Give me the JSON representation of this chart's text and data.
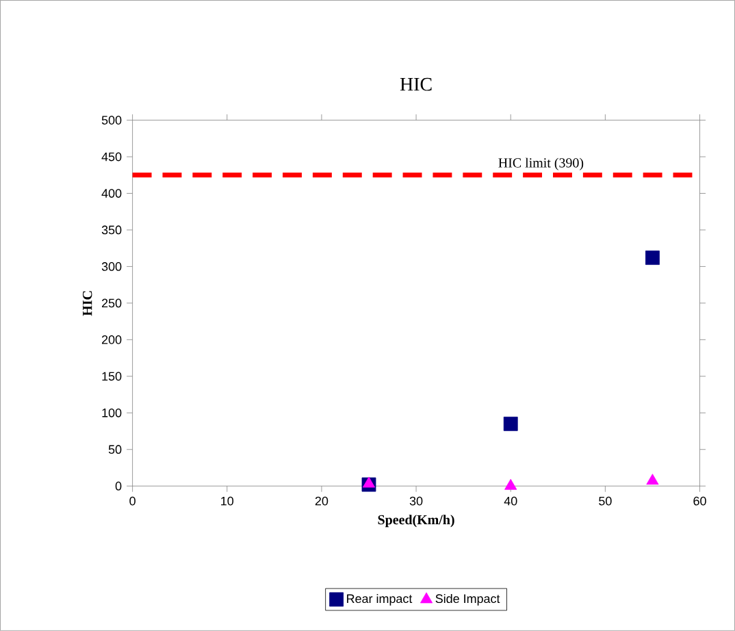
{
  "chart_data": {
    "type": "scatter",
    "title": "HIC",
    "xlabel": "Speed(Km/h)",
    "ylabel": "HIC",
    "xlim": [
      0,
      60
    ],
    "xticks": [
      0,
      10,
      20,
      30,
      40,
      50,
      60
    ],
    "ylim": [
      0,
      500
    ],
    "yticks": [
      0,
      50,
      100,
      150,
      200,
      250,
      300,
      350,
      400,
      450,
      500
    ],
    "series": [
      {
        "name": "Rear impact",
        "color": "#000080",
        "marker": "square",
        "x": [
          25,
          40,
          55
        ],
        "values": [
          2,
          85,
          312
        ]
      },
      {
        "name": "Side Impact",
        "color": "#ff00ff",
        "marker": "triangle",
        "x": [
          25,
          40,
          55
        ],
        "values": [
          3,
          0,
          7
        ]
      }
    ],
    "ref_lines": [
      {
        "axis": "y",
        "value": 425,
        "label": "HIC limit (390)",
        "color": "#ff0000",
        "line_style": "dashed"
      }
    ],
    "legend": "bottom",
    "grid": false
  }
}
